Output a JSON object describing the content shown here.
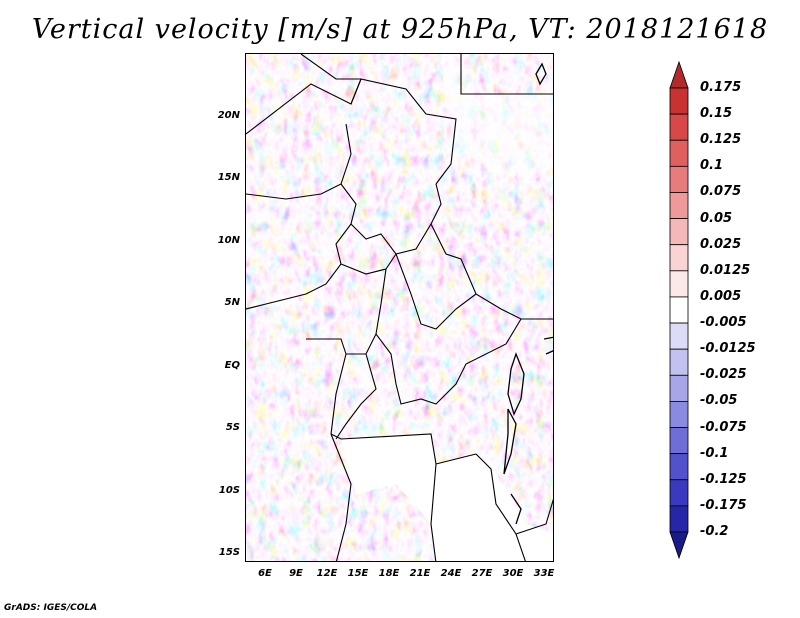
{
  "title": "Vertical velocity [m/s] at 925hPa, VT: 2018121618",
  "credit": "GrADS: IGES/COLA",
  "lat_ticks": [
    "20N",
    "15N",
    "10N",
    "5N",
    "EQ",
    "5S",
    "10S",
    "15S"
  ],
  "lon_ticks": [
    "6E",
    "9E",
    "12E",
    "15E",
    "18E",
    "21E",
    "24E",
    "27E",
    "30E",
    "33E"
  ],
  "colorbar": {
    "labels": [
      "0.175",
      "0.15",
      "0.125",
      "0.1",
      "0.075",
      "0.05",
      "0.025",
      "0.0125",
      "0.005",
      "-0.005",
      "-0.0125",
      "-0.025",
      "-0.05",
      "-0.075",
      "-0.1",
      "-0.125",
      "-0.175",
      "-0.2"
    ],
    "colors": [
      "#b32a2a",
      "#c83232",
      "#d94848",
      "#e06060",
      "#e87c7c",
      "#ef9a9a",
      "#f5b8b8",
      "#fad3d3",
      "#fde8e8",
      "#ffffff",
      "#dcdcf7",
      "#c2c2f0",
      "#a6a6e8",
      "#8a8ae0",
      "#6e6ed6",
      "#5252cc",
      "#3a3ac0",
      "#2626a8",
      "#1a1a8a"
    ]
  }
}
